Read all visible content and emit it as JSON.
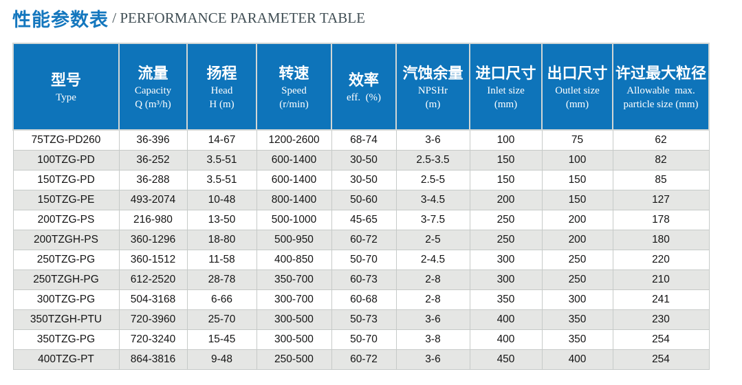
{
  "title": {
    "zh": "性能参数表",
    "separator": " / ",
    "en": "PERFORMANCE PARAMETER TABLE"
  },
  "colors": {
    "header_bg": "#0E74BA",
    "header_text": "#FFFFFF",
    "title_zh": "#1477BE",
    "title_en": "#414F55",
    "alt_row_bg": "#E5E6E4",
    "grid_line": "#C6CAC8",
    "body_text": "#141414"
  },
  "table": {
    "columns": [
      {
        "id": "type",
        "zh": "型号",
        "en_lines": [
          "Type"
        ]
      },
      {
        "id": "capacity",
        "zh": "流量",
        "en_lines": [
          "Capacity",
          "Q (m³/h)"
        ]
      },
      {
        "id": "head",
        "zh": "扬程",
        "en_lines": [
          "Head",
          "H (m)"
        ]
      },
      {
        "id": "speed",
        "zh": "转速",
        "en_lines": [
          "Speed",
          "(r/min)"
        ]
      },
      {
        "id": "efficiency",
        "zh": "效率",
        "en_lines": [
          "eff.  (%)"
        ]
      },
      {
        "id": "npshr",
        "zh": "汽蚀余量",
        "en_lines": [
          "NPSHr",
          "(m)"
        ]
      },
      {
        "id": "inlet-size",
        "zh": "进口尺寸",
        "en_lines": [
          "Inlet size",
          "(mm)"
        ]
      },
      {
        "id": "outlet-size",
        "zh": "出口尺寸",
        "en_lines": [
          "Outlet size",
          "(mm)"
        ]
      },
      {
        "id": "max-particle-size",
        "zh": "许过最大粒径",
        "en_lines": [
          "Allowable  max.",
          "particle size (mm)"
        ]
      }
    ],
    "rows": [
      [
        "75TZG-PD260",
        "36-396",
        "14-67",
        "1200-2600",
        "68-74",
        "3-6",
        "100",
        "75",
        "62"
      ],
      [
        "100TZG-PD",
        "36-252",
        "3.5-51",
        "600-1400",
        "30-50",
        "2.5-3.5",
        "150",
        "100",
        "82"
      ],
      [
        "150TZG-PD",
        "36-288",
        "3.5-51",
        "600-1400",
        "30-50",
        "2.5-5",
        "150",
        "150",
        "85"
      ],
      [
        "150TZG-PE",
        "493-2074",
        "10-48",
        "800-1400",
        "50-60",
        "3-4.5",
        "200",
        "150",
        "127"
      ],
      [
        "200TZG-PS",
        "216-980",
        "13-50",
        "500-1000",
        "45-65",
        "3-7.5",
        "250",
        "200",
        "178"
      ],
      [
        "200TZGH-PS",
        "360-1296",
        "18-80",
        "500-950",
        "60-72",
        "2-5",
        "250",
        "200",
        "180"
      ],
      [
        "250TZG-PG",
        "360-1512",
        "11-58",
        "400-850",
        "50-70",
        "2-4.5",
        "300",
        "250",
        "220"
      ],
      [
        "250TZGH-PG",
        "612-2520",
        "28-78",
        "350-700",
        "60-73",
        "2-8",
        "300",
        "250",
        "210"
      ],
      [
        "300TZG-PG",
        "504-3168",
        "6-66",
        "300-700",
        "60-68",
        "2-8",
        "350",
        "300",
        "241"
      ],
      [
        "350TZGH-PTU",
        "720-3960",
        "25-70",
        "300-500",
        "50-73",
        "3-6",
        "400",
        "350",
        "230"
      ],
      [
        "350TZG-PG",
        "720-3240",
        "15-45",
        "300-500",
        "50-70",
        "3-8",
        "400",
        "350",
        "254"
      ],
      [
        "400TZG-PT",
        "864-3816",
        "9-48",
        "250-500",
        "60-72",
        "3-6",
        "450",
        "400",
        "254"
      ]
    ]
  }
}
